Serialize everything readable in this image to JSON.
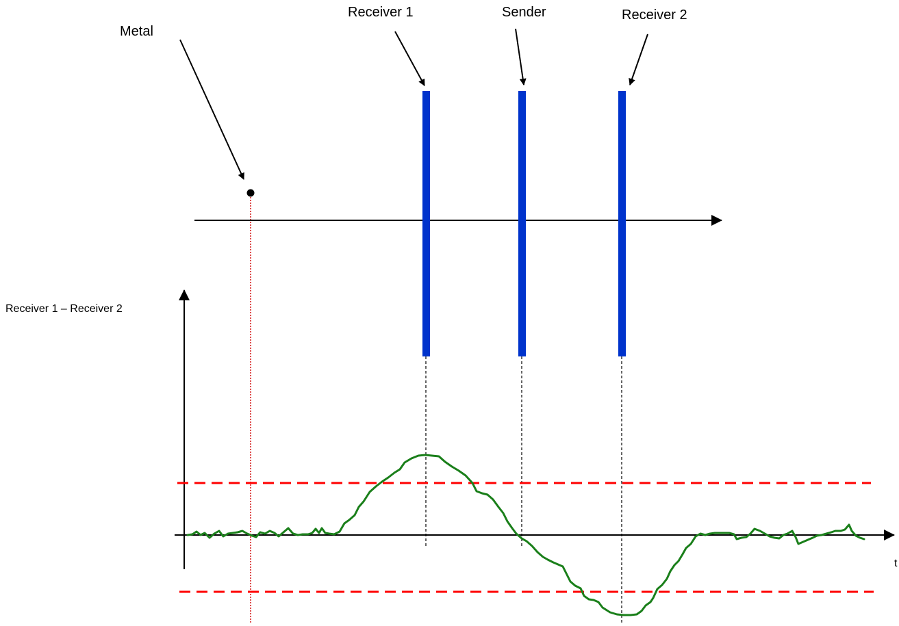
{
  "labels": {
    "metal": "Metal",
    "receiver1": "Receiver 1",
    "sender": "Sender",
    "receiver2": "Receiver 2",
    "y_axis": "Receiver 1 – Receiver 2",
    "x_axis": "t"
  },
  "colors": {
    "coil": "#0033cc",
    "signal": "#1a7f1a",
    "threshold": "#ff0000",
    "metal_marker_line": "#d00000",
    "axis": "#000000"
  },
  "icons": {
    "metal": "filled-dot",
    "coils": "vertical-bar",
    "axes": "arrow"
  }
}
